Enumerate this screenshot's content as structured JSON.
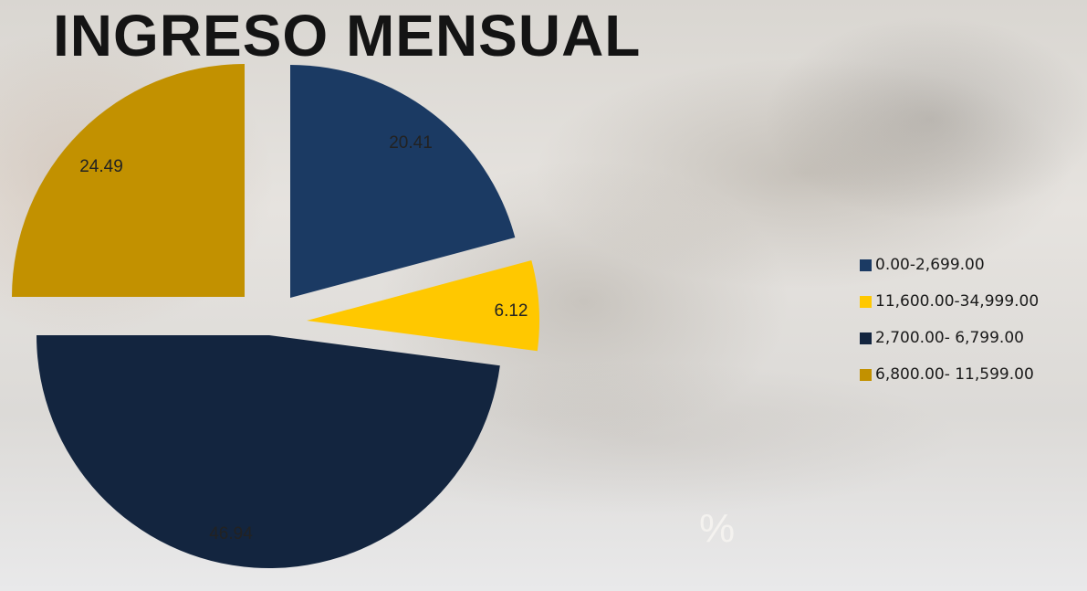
{
  "title": "INGRESO MENSUAL",
  "colors": {
    "range_0_2699": "#1b3a63",
    "range_11600_34999": "#ffc800",
    "range_2700_6799": "#13253f",
    "range_6800_11599": "#c29100"
  },
  "chart_data": {
    "type": "pie",
    "title": "INGRESO MENSUAL",
    "exploded": true,
    "start_angle_deg": 0,
    "direction": "clockwise",
    "slices": [
      {
        "name": "0.00-2,699.00",
        "value": 20.41,
        "label": "20.41",
        "color": "#1b3a63"
      },
      {
        "name": "11,600.00-34,999.00",
        "value": 6.12,
        "label": "6.12",
        "color": "#ffc800"
      },
      {
        "name": "2,700.00- 6,799.00",
        "value": 46.94,
        "label": "46.94",
        "color": "#13253f"
      },
      {
        "name": "6,800.00- 11,599.00",
        "value": 24.49,
        "label": "24.49",
        "color": "#c29100"
      }
    ],
    "unit_label": "%",
    "legend_position": "right"
  },
  "legend": [
    {
      "label": "0.00-2,699.00",
      "icon": "square-swatch",
      "color": "#1b3a63"
    },
    {
      "label": "11,600.00-34,999.00",
      "icon": "square-swatch",
      "color": "#ffc800"
    },
    {
      "label": "2,700.00- 6,799.00",
      "icon": "square-swatch",
      "color": "#13253f"
    },
    {
      "label": "6,800.00- 11,599.00",
      "icon": "square-swatch",
      "color": "#c29100"
    }
  ],
  "unit_label": "%"
}
